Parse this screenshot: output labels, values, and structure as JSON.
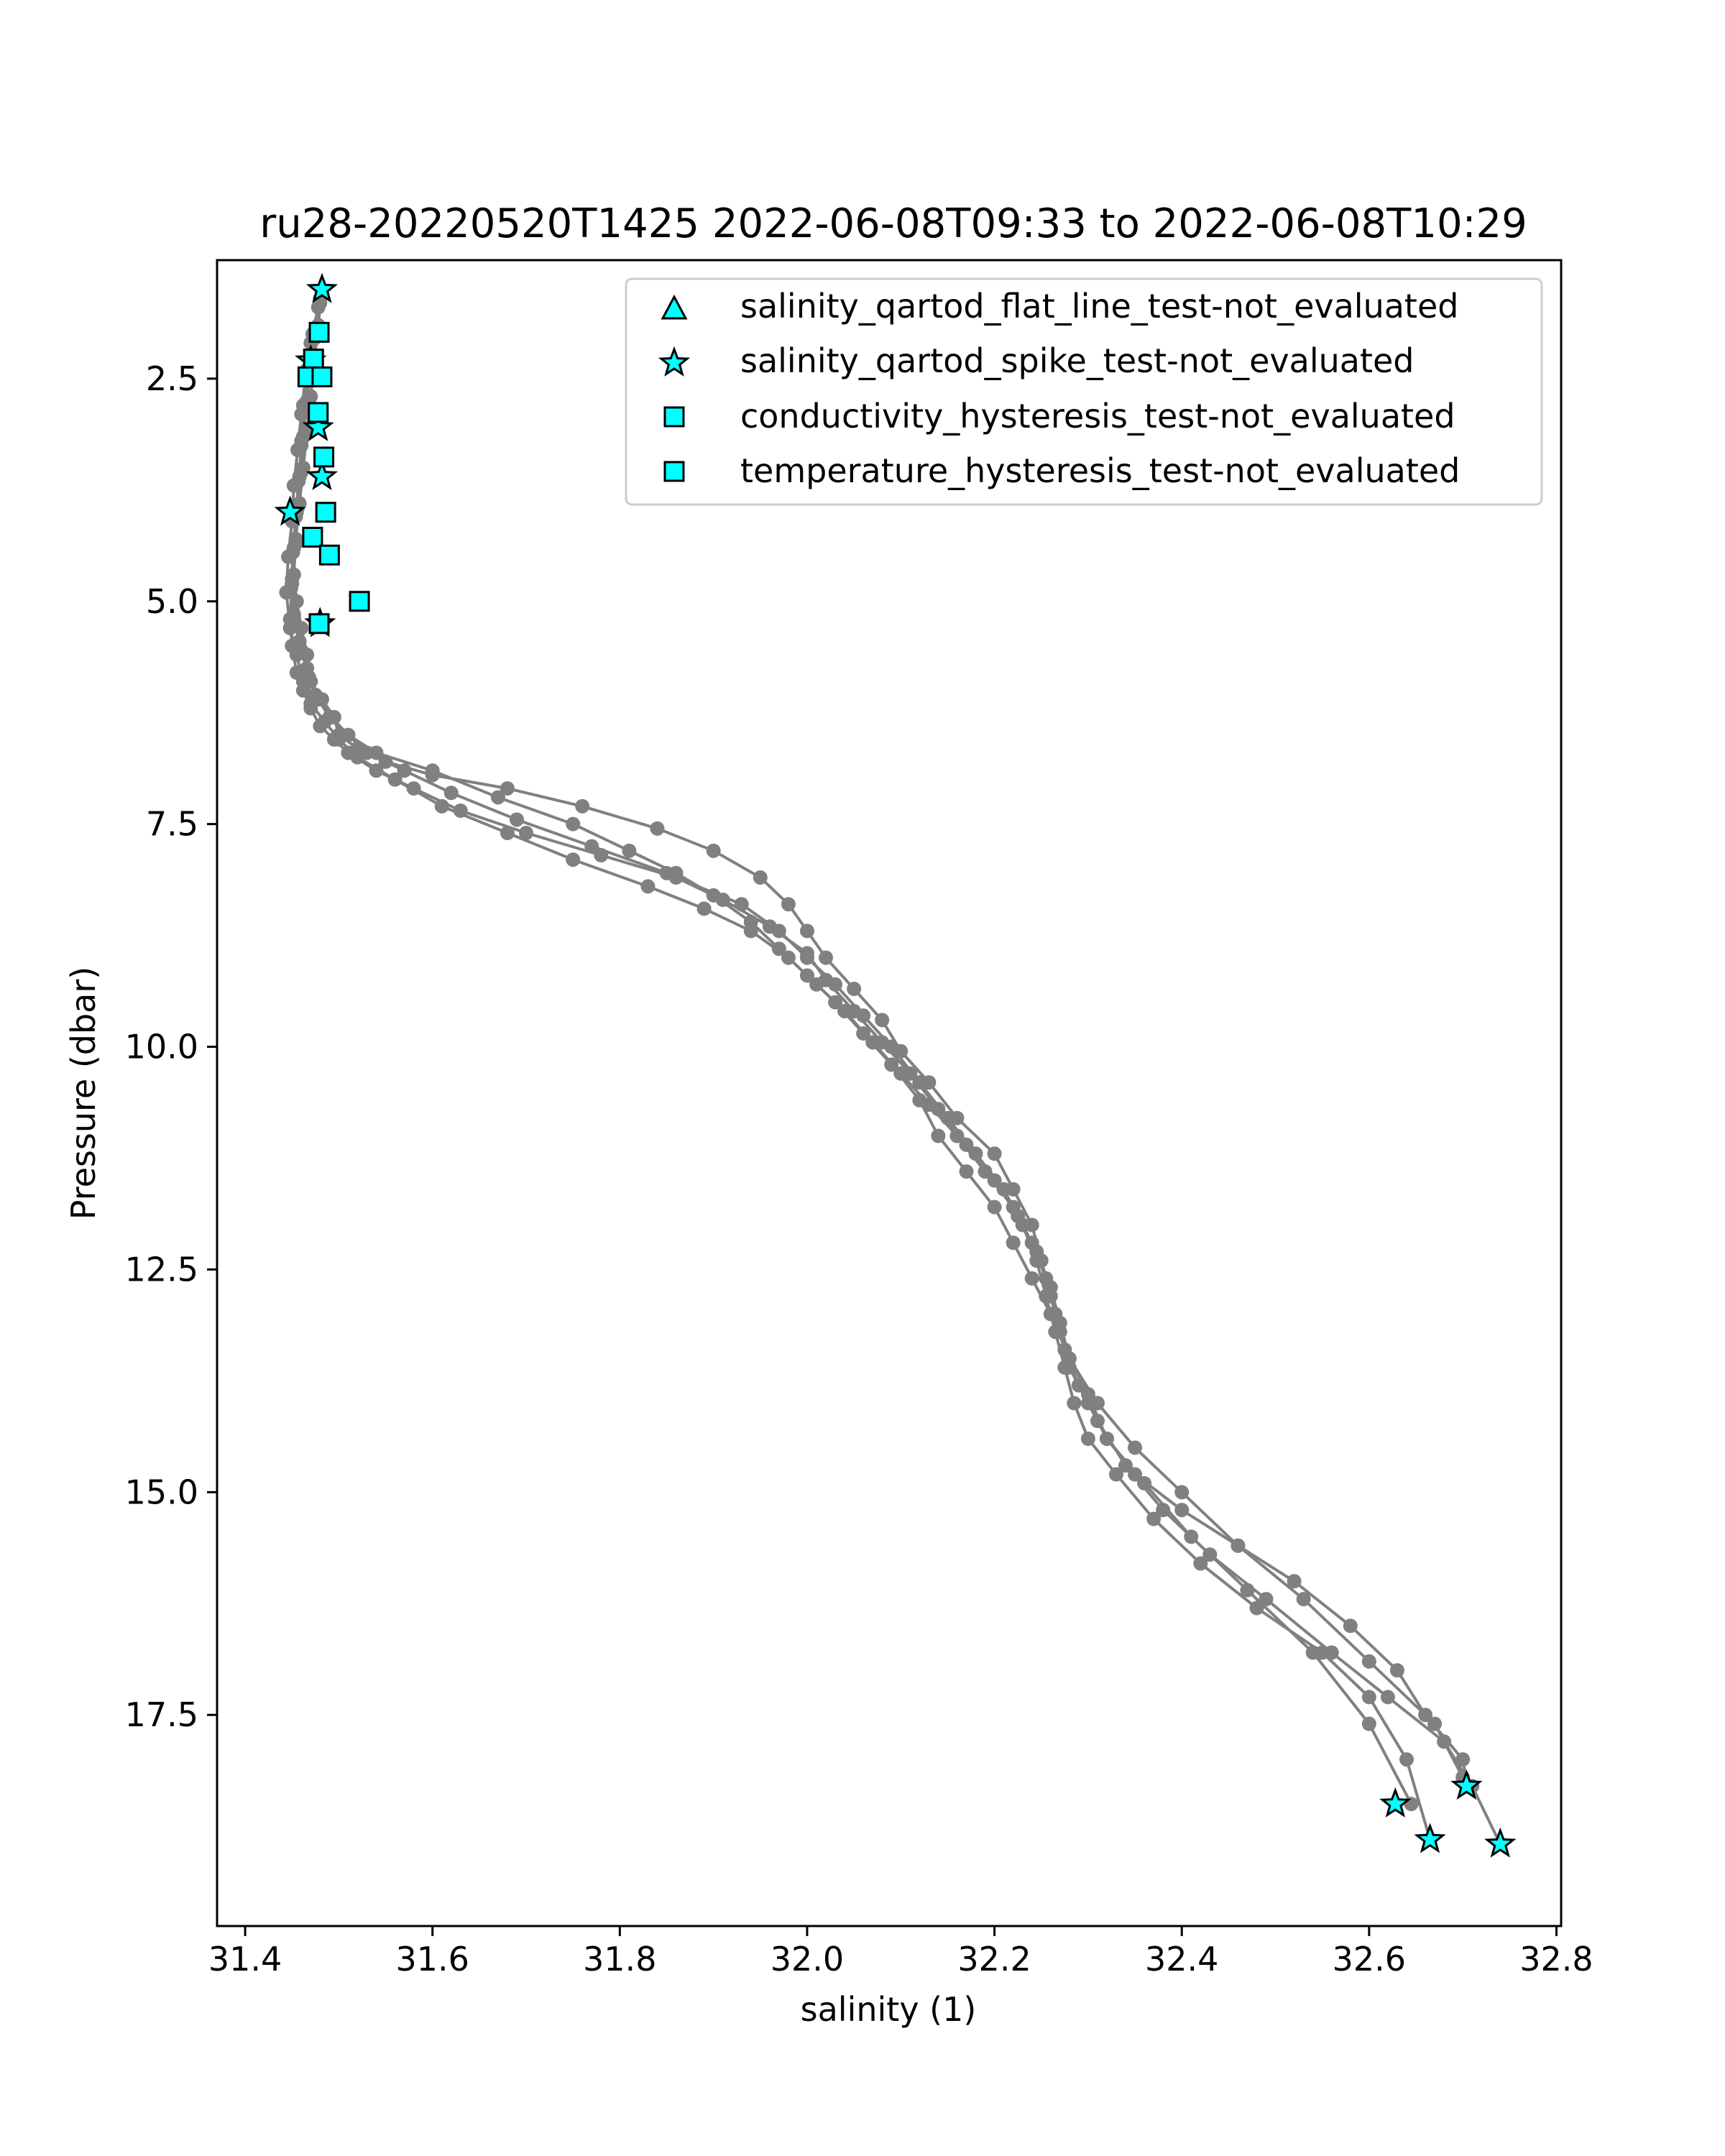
{
  "chart_data": {
    "type": "scatter",
    "title": "ru28-20220520T1425 2022-06-08T09:33 to 2022-06-08T10:29",
    "xlabel": "salinity (1)",
    "ylabel": "Pressure (dbar)",
    "xlim": [
      31.37,
      32.805
    ],
    "ylim": [
      19.87,
      1.17
    ],
    "y_inverted": true,
    "grid": false,
    "legend_position": "top-right",
    "xticks": [
      "31.4",
      "31.6",
      "31.8",
      "32.0",
      "32.2",
      "32.4",
      "32.6",
      "32.8"
    ],
    "yticks": [
      "2.5",
      "5.0",
      "7.5",
      "10.0",
      "12.5",
      "15.0",
      "17.5"
    ],
    "xtick_values": [
      31.4,
      31.6,
      31.8,
      32.0,
      32.2,
      32.4,
      32.6,
      32.8
    ],
    "ytick_values": [
      2.5,
      5.0,
      7.5,
      10.0,
      12.5,
      15.0,
      17.5
    ],
    "colors": {
      "profile": "#808080",
      "flag_fill": "#00ffff",
      "flag_edge": "#000000",
      "axis": "#000000"
    },
    "profiles": [
      {
        "x": [
          31.482,
          31.478,
          31.474,
          31.47,
          31.466,
          31.462,
          31.458,
          31.454,
          31.452,
          31.455,
          31.46,
          31.466,
          31.47,
          31.482,
          31.495,
          31.5,
          31.52,
          31.55,
          31.6,
          31.68,
          31.76,
          31.84,
          31.9,
          31.95,
          31.98,
          32.0,
          32.02,
          32.05,
          32.08,
          32.1,
          32.13,
          32.16,
          32.2,
          32.22,
          32.24,
          32.25,
          32.26,
          32.27,
          32.28,
          32.3,
          32.32,
          32.35,
          32.4,
          32.46,
          32.52,
          32.58,
          32.63,
          32.66,
          32.7,
          32.705
        ],
        "y": [
          1.5,
          1.9,
          2.3,
          2.7,
          3.1,
          3.5,
          3.9,
          4.3,
          4.7,
          5.0,
          5.3,
          5.6,
          5.9,
          6.1,
          6.3,
          6.5,
          6.65,
          6.8,
          6.95,
          7.1,
          7.3,
          7.55,
          7.8,
          8.1,
          8.4,
          8.7,
          9.0,
          9.35,
          9.7,
          10.05,
          10.4,
          10.8,
          11.2,
          11.6,
          12.0,
          12.4,
          12.8,
          13.2,
          13.6,
          14.0,
          14.4,
          14.8,
          15.2,
          15.6,
          16.0,
          16.5,
          17.0,
          17.5,
          18.0,
          18.3
        ]
      },
      {
        "x": [
          31.48,
          31.472,
          31.466,
          31.462,
          31.46,
          31.458,
          31.455,
          31.452,
          31.45,
          31.448,
          31.45,
          31.455,
          31.462,
          31.47,
          31.48,
          31.495,
          31.51,
          31.54,
          31.58,
          31.63,
          31.7,
          31.78,
          31.86,
          31.93,
          31.97,
          32.0,
          32.03,
          32.06,
          32.09,
          32.12,
          32.15,
          32.18,
          32.21,
          32.23,
          32.245,
          32.255,
          32.265,
          32.275,
          32.285,
          32.3,
          32.33,
          32.37,
          32.42,
          32.48,
          32.55,
          32.6,
          32.64,
          32.665
        ],
        "y": [
          1.6,
          2.0,
          2.4,
          2.8,
          3.2,
          3.6,
          4.0,
          4.4,
          4.8,
          5.2,
          5.5,
          5.8,
          6.0,
          6.2,
          6.4,
          6.55,
          6.7,
          6.9,
          7.1,
          7.35,
          7.6,
          7.85,
          8.1,
          8.4,
          8.7,
          9.0,
          9.3,
          9.65,
          10.0,
          10.4,
          10.8,
          11.2,
          11.6,
          12.0,
          12.4,
          12.8,
          13.2,
          13.6,
          14.0,
          14.4,
          14.8,
          15.3,
          15.8,
          16.3,
          16.8,
          17.3,
          18.0,
          18.9
        ]
      },
      {
        "x": [
          31.478,
          31.47,
          31.464,
          31.46,
          31.456,
          31.452,
          31.45,
          31.446,
          31.444,
          31.448,
          31.455,
          31.462,
          31.47,
          31.485,
          31.5,
          31.52,
          31.56,
          31.61,
          31.68,
          31.75,
          31.83,
          31.89,
          31.94,
          31.98,
          32.01,
          32.04,
          32.07,
          32.1,
          32.13,
          32.16,
          32.19,
          32.22,
          32.24,
          32.255,
          32.265,
          32.275,
          32.29,
          32.31,
          32.34,
          32.38,
          32.43,
          32.49,
          32.56,
          32.62,
          32.68,
          32.71,
          32.74
        ],
        "y": [
          1.7,
          2.1,
          2.5,
          2.9,
          3.3,
          3.7,
          4.1,
          4.5,
          4.9,
          5.3,
          5.6,
          5.9,
          6.15,
          6.35,
          6.55,
          6.75,
          7.0,
          7.3,
          7.6,
          7.9,
          8.2,
          8.45,
          8.7,
          9.0,
          9.3,
          9.6,
          9.95,
          10.3,
          10.65,
          11.0,
          11.4,
          11.8,
          12.2,
          12.6,
          13.0,
          13.4,
          13.8,
          14.2,
          14.7,
          15.2,
          15.7,
          16.2,
          16.8,
          17.3,
          17.8,
          18.3,
          18.95
        ]
      },
      {
        "x": [
          31.482,
          31.476,
          31.47,
          31.466,
          31.462,
          31.46,
          31.456,
          31.454,
          31.45,
          31.452,
          31.458,
          31.466,
          31.475,
          31.49,
          31.51,
          31.54,
          31.6,
          31.67,
          31.75,
          31.81,
          31.86,
          31.9,
          31.94,
          31.97,
          32.0,
          32.03,
          32.06,
          32.09,
          32.12,
          32.14,
          32.17,
          32.2,
          32.22,
          32.24,
          32.26,
          32.28,
          32.31,
          32.35,
          32.4,
          32.46,
          32.53,
          32.6,
          32.67,
          32.7
        ],
        "y": [
          1.55,
          1.95,
          2.35,
          2.75,
          3.15,
          3.55,
          3.95,
          4.35,
          4.75,
          5.15,
          5.45,
          5.75,
          6.05,
          6.3,
          6.5,
          6.7,
          6.9,
          7.2,
          7.5,
          7.8,
          8.05,
          8.3,
          8.6,
          8.9,
          9.2,
          9.5,
          9.85,
          10.2,
          10.6,
          11.0,
          11.4,
          11.8,
          12.2,
          12.6,
          13.0,
          13.5,
          14.0,
          14.5,
          15.0,
          15.6,
          16.2,
          16.9,
          17.6,
          18.2
        ]
      },
      {
        "x": [
          31.48,
          31.474,
          31.468,
          31.464,
          31.46,
          31.457,
          31.454,
          31.451,
          31.449,
          31.453,
          31.46,
          31.468,
          31.478,
          31.492,
          31.51,
          31.53,
          31.57,
          31.62,
          31.69,
          31.77,
          31.85,
          31.91,
          31.96,
          32.0,
          32.02,
          32.05,
          32.08,
          32.11,
          32.14,
          32.17,
          32.2,
          32.225,
          32.245,
          32.26,
          32.27,
          32.28,
          32.3,
          32.32,
          32.36,
          32.41,
          32.47,
          32.54,
          32.6,
          32.645
        ],
        "y": [
          1.65,
          2.05,
          2.45,
          2.85,
          3.25,
          3.65,
          4.05,
          4.45,
          4.85,
          5.25,
          5.55,
          5.85,
          6.1,
          6.3,
          6.5,
          6.7,
          6.9,
          7.15,
          7.45,
          7.75,
          8.05,
          8.35,
          8.65,
          8.95,
          9.25,
          9.6,
          9.95,
          10.3,
          10.7,
          11.1,
          11.5,
          11.9,
          12.3,
          12.7,
          13.1,
          13.5,
          13.9,
          14.4,
          14.9,
          15.5,
          16.1,
          16.8,
          17.6,
          18.5
        ]
      }
    ],
    "flags": {
      "salinity_qartod_spike_test-not_evaluated": {
        "x": [
          31.482,
          31.47,
          31.478,
          31.482,
          31.448,
          31.48,
          32.628,
          32.665,
          32.704,
          32.74
        ],
        "y": [
          1.5,
          2.3,
          3.05,
          3.6,
          4.0,
          5.25,
          18.5,
          18.9,
          18.3,
          18.95
        ]
      },
      "conductivity_hysteresis_test-not_evaluated": {
        "x": [
          31.479,
          31.473,
          31.467,
          31.482,
          31.478,
          31.484,
          31.486,
          31.472,
          31.49,
          31.522,
          31.479
        ],
        "y": [
          1.98,
          2.28,
          2.48,
          2.48,
          2.88,
          3.38,
          4.0,
          4.28,
          4.48,
          5.0,
          5.25
        ]
      }
    },
    "legend": [
      {
        "label": "salinity_qartod_flat_line_test-not_evaluated",
        "marker": "triangle"
      },
      {
        "label": "salinity_qartod_spike_test-not_evaluated",
        "marker": "star"
      },
      {
        "label": "conductivity_hysteresis_test-not_evaluated",
        "marker": "square"
      },
      {
        "label": "temperature_hysteresis_test-not_evaluated",
        "marker": "square"
      }
    ]
  }
}
